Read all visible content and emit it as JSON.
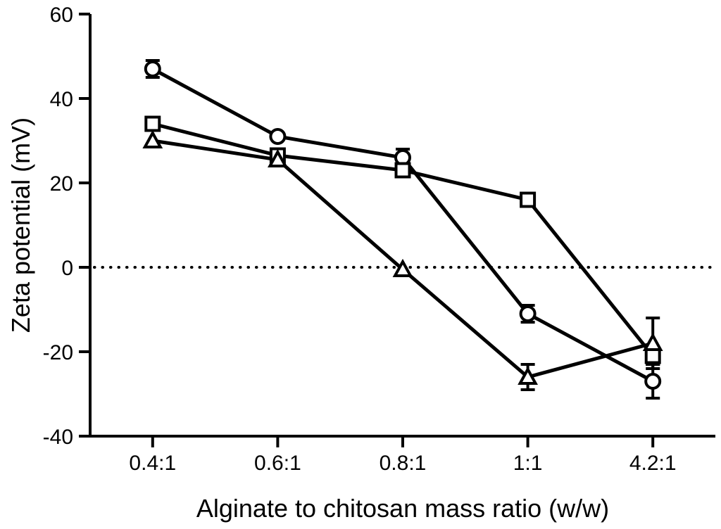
{
  "chart_data": {
    "type": "line",
    "title": "",
    "xlabel": "Alginate to chitosan mass ratio (w/w)",
    "ylabel": "Zeta potential (mV)",
    "categories": [
      "0.4:1",
      "0.6:1",
      "0.8:1",
      "1:1",
      "4.2:1"
    ],
    "series": [
      {
        "name": "circle-series",
        "marker": "circle",
        "values": [
          47,
          31,
          26,
          -11,
          -27
        ],
        "errors": [
          2,
          0,
          2,
          2,
          4
        ]
      },
      {
        "name": "square-series",
        "marker": "square",
        "values": [
          34,
          26.5,
          23,
          16,
          -21
        ],
        "errors": [
          0,
          0,
          1,
          0,
          2
        ]
      },
      {
        "name": "triangle-series",
        "marker": "triangle",
        "values": [
          30,
          25.5,
          -0.5,
          -26,
          -18
        ],
        "errors": [
          0,
          0,
          0,
          3,
          6
        ]
      }
    ],
    "ylim": [
      -40,
      60
    ],
    "yticks": [
      -40,
      -20,
      0,
      20,
      40,
      60
    ],
    "reference_line": {
      "y": 0,
      "style": "dotted"
    },
    "grid": false,
    "legend": "none",
    "line_color": "#000000",
    "marker_fill": "#ffffff",
    "background": "#ffffff"
  }
}
